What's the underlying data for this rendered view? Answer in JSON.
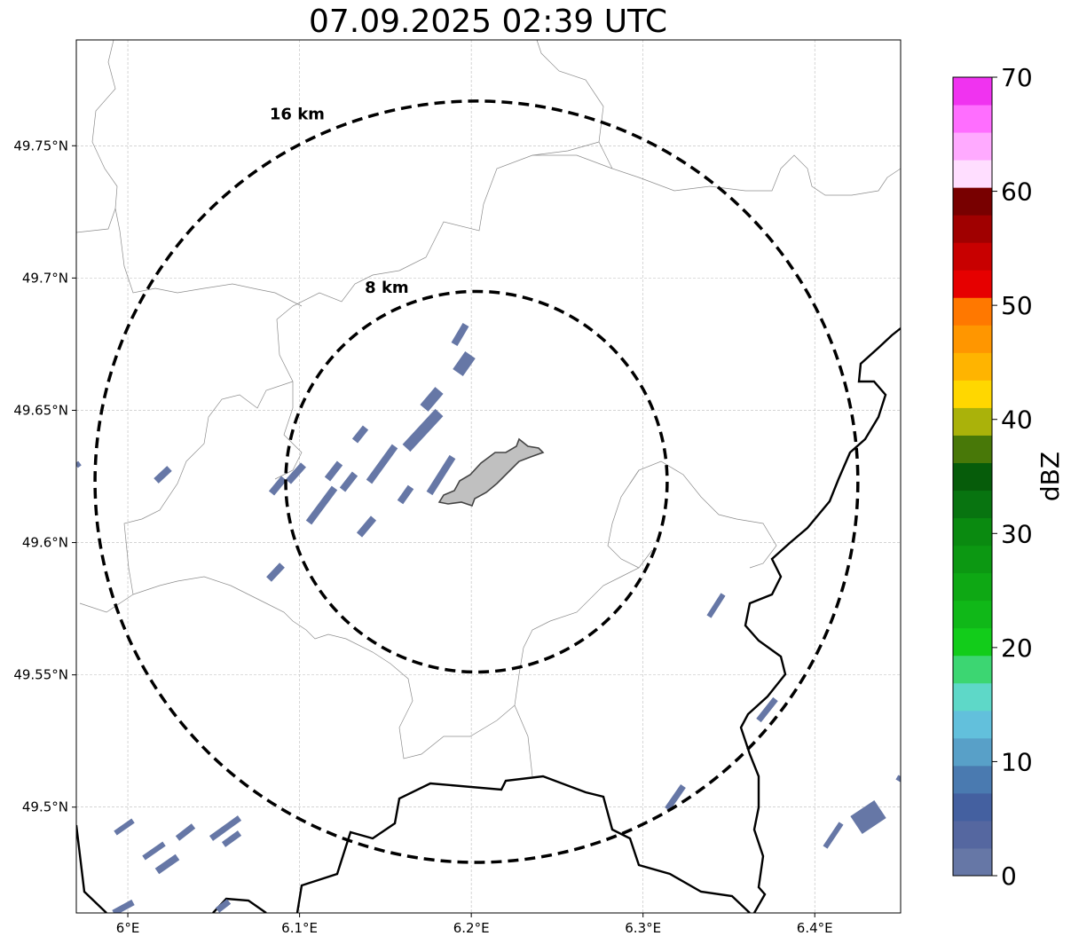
{
  "title": "07.09.2025 02:39 UTC",
  "map": {
    "lon_range": [
      5.97,
      6.45
    ],
    "lat_range": [
      49.46,
      49.79
    ],
    "x_ticks": [
      {
        "value": 6.0,
        "label": "6°E"
      },
      {
        "value": 6.1,
        "label": "6.1°E"
      },
      {
        "value": 6.2,
        "label": "6.2°E"
      },
      {
        "value": 6.3,
        "label": "6.3°E"
      },
      {
        "value": 6.4,
        "label": "6.4°E"
      }
    ],
    "y_ticks": [
      {
        "value": 49.75,
        "label": "49.75°N"
      },
      {
        "value": 49.7,
        "label": "49.7°N"
      },
      {
        "value": 49.65,
        "label": "49.65°N"
      },
      {
        "value": 49.6,
        "label": "49.6°N"
      },
      {
        "value": 49.55,
        "label": "49.55°N"
      },
      {
        "value": 49.5,
        "label": "49.5°N"
      }
    ],
    "center": {
      "lon": 6.203,
      "lat": 49.623
    },
    "rings": [
      {
        "radius_km": 8,
        "label": "8 km"
      },
      {
        "radius_km": 16,
        "label": "16 km"
      }
    ],
    "grid": true,
    "echo_color": "#6677a6",
    "city_fill": "#c0c0c0"
  },
  "colorbar": {
    "label": "dBZ",
    "range": [
      0,
      70
    ],
    "ticks": [
      {
        "value": 0,
        "label": "0"
      },
      {
        "value": 10,
        "label": "10"
      },
      {
        "value": 20,
        "label": "20"
      },
      {
        "value": 30,
        "label": "30"
      },
      {
        "value": 40,
        "label": "40"
      },
      {
        "value": 50,
        "label": "50"
      },
      {
        "value": 60,
        "label": "60"
      },
      {
        "value": 70,
        "label": "70"
      }
    ],
    "colors": [
      "#6677a6",
      "#5567a0",
      "#4460a0",
      "#4a7ab0",
      "#58a0c8",
      "#62c0dc",
      "#5ed8c8",
      "#3cd672",
      "#12cc1a",
      "#10b818",
      "#0ea814",
      "#0c9812",
      "#0a8a10",
      "#087410",
      "#065c0a",
      "#487808",
      "#aab20a",
      "#ffd700",
      "#ffb400",
      "#ff9600",
      "#ff7800",
      "#e60000",
      "#c80000",
      "#a00000",
      "#780000",
      "#ffdeff",
      "#ffaaff",
      "#ff6eff",
      "#f033f0"
    ]
  }
}
